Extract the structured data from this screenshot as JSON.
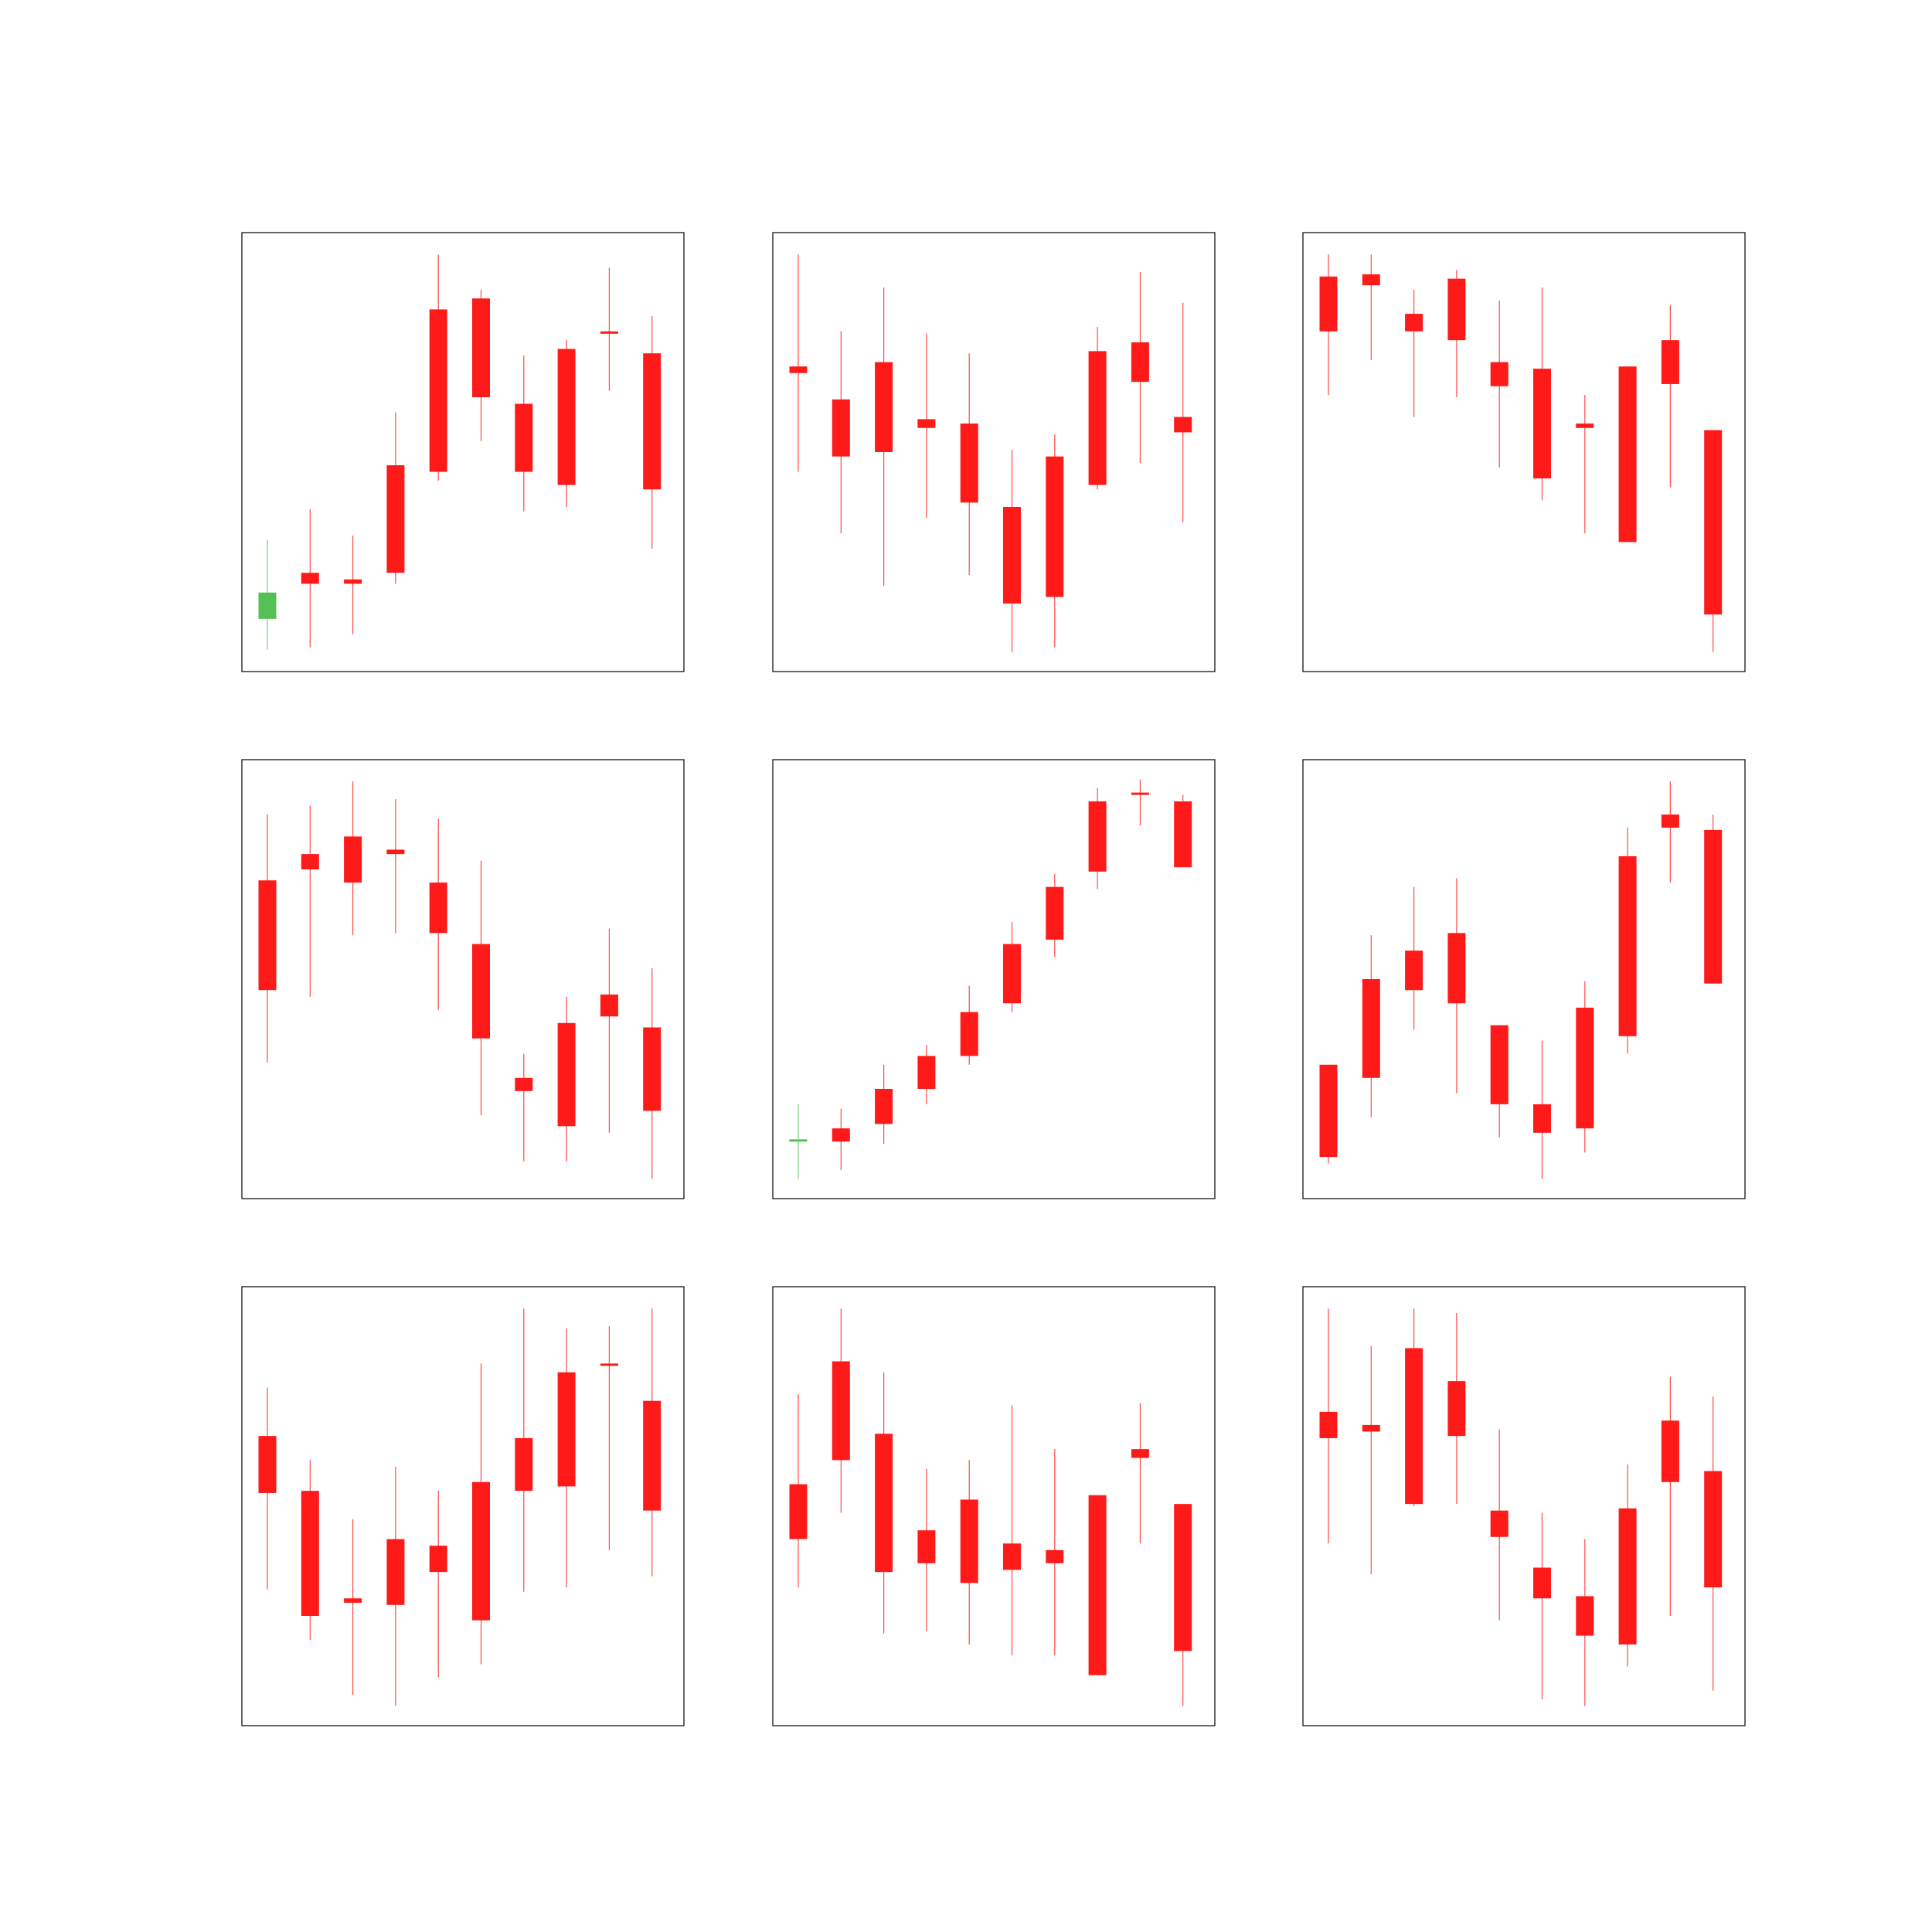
{
  "colors": {
    "up": "#ff1a1a",
    "down": "#55c155",
    "frame": "#000000"
  },
  "chart_data": [
    {
      "type": "candlestick",
      "grid": false,
      "ylim": [
        0,
        100
      ],
      "candles": [
        {
          "open": 18.0,
          "close": 12.0,
          "high": 30.0,
          "low": 5.0
        },
        {
          "open": 20.0,
          "close": 22.5,
          "high": 37.0,
          "low": 5.5
        },
        {
          "open": 20.0,
          "close": 21.0,
          "high": 31.0,
          "low": 8.5
        },
        {
          "open": 22.5,
          "close": 47.0,
          "high": 59.0,
          "low": 20.0
        },
        {
          "open": 45.5,
          "close": 82.5,
          "high": 95.0,
          "low": 43.5
        },
        {
          "open": 62.5,
          "close": 85.0,
          "high": 87.0,
          "low": 52.5
        },
        {
          "open": 45.5,
          "close": 61.0,
          "high": 72.0,
          "low": 36.5
        },
        {
          "open": 42.5,
          "close": 73.5,
          "high": 75.5,
          "low": 37.5
        },
        {
          "open": 77.0,
          "close": 77.5,
          "high": 92.0,
          "low": 64.0
        },
        {
          "open": 41.5,
          "close": 72.5,
          "high": 81.0,
          "low": 28.0
        }
      ]
    },
    {
      "type": "candlestick",
      "grid": false,
      "ylim": [
        0,
        100
      ],
      "candles": [
        {
          "open": 68.0,
          "close": 69.5,
          "high": 95.0,
          "low": 45.5
        },
        {
          "open": 49.0,
          "close": 62.0,
          "high": 77.5,
          "low": 31.5
        },
        {
          "open": 50.0,
          "close": 70.5,
          "high": 87.5,
          "low": 19.5
        },
        {
          "open": 55.5,
          "close": 57.5,
          "high": 77.0,
          "low": 35.0
        },
        {
          "open": 38.5,
          "close": 56.5,
          "high": 72.5,
          "low": 22.0
        },
        {
          "open": 15.5,
          "close": 37.5,
          "high": 50.5,
          "low": 4.5
        },
        {
          "open": 17.0,
          "close": 49.0,
          "high": 54.0,
          "low": 5.5
        },
        {
          "open": 42.5,
          "close": 73.0,
          "high": 78.5,
          "low": 41.5
        },
        {
          "open": 66.0,
          "close": 75.0,
          "high": 91.0,
          "low": 47.5
        },
        {
          "open": 54.5,
          "close": 58.0,
          "high": 84.0,
          "low": 34.0
        }
      ]
    },
    {
      "type": "candlestick",
      "grid": false,
      "ylim": [
        0,
        100
      ],
      "candles": [
        {
          "open": 77.5,
          "close": 90.0,
          "high": 95.0,
          "low": 63.0
        },
        {
          "open": 88.0,
          "close": 90.5,
          "high": 95.0,
          "low": 71.0
        },
        {
          "open": 77.5,
          "close": 81.5,
          "high": 87.0,
          "low": 58.0
        },
        {
          "open": 75.5,
          "close": 89.5,
          "high": 91.5,
          "low": 62.5
        },
        {
          "open": 65.0,
          "close": 70.5,
          "high": 84.5,
          "low": 46.5
        },
        {
          "open": 44.0,
          "close": 69.0,
          "high": 87.5,
          "low": 39.0
        },
        {
          "open": 55.5,
          "close": 56.5,
          "high": 63.0,
          "low": 31.5
        },
        {
          "open": 29.5,
          "close": 69.5,
          "high": 69.5,
          "low": 29.5
        },
        {
          "open": 65.5,
          "close": 75.5,
          "high": 83.5,
          "low": 42.0
        },
        {
          "open": 13.0,
          "close": 55.0,
          "high": 55.0,
          "low": 4.5
        }
      ]
    },
    {
      "type": "candlestick",
      "grid": false,
      "ylim": [
        0,
        100
      ],
      "candles": [
        {
          "open": 47.5,
          "close": 72.5,
          "high": 87.5,
          "low": 31.0
        },
        {
          "open": 75.0,
          "close": 78.5,
          "high": 89.5,
          "low": 46.0
        },
        {
          "open": 72.0,
          "close": 82.5,
          "high": 95.0,
          "low": 60.0
        },
        {
          "open": 78.5,
          "close": 79.5,
          "high": 91.0,
          "low": 60.5
        },
        {
          "open": 60.5,
          "close": 72.0,
          "high": 86.5,
          "low": 43.0
        },
        {
          "open": 36.5,
          "close": 58.0,
          "high": 77.0,
          "low": 19.0
        },
        {
          "open": 24.5,
          "close": 27.5,
          "high": 33.0,
          "low": 8.5
        },
        {
          "open": 16.5,
          "close": 40.0,
          "high": 46.0,
          "low": 8.5
        },
        {
          "open": 41.5,
          "close": 46.5,
          "high": 61.5,
          "low": 15.0
        },
        {
          "open": 20.0,
          "close": 39.0,
          "high": 52.5,
          "low": 4.5
        }
      ]
    },
    {
      "type": "candlestick",
      "grid": false,
      "ylim": [
        0,
        100
      ],
      "candles": [
        {
          "open": 13.5,
          "close": 13.0,
          "high": 21.5,
          "low": 4.5
        },
        {
          "open": 13.0,
          "close": 16.0,
          "high": 20.5,
          "low": 6.5
        },
        {
          "open": 17.0,
          "close": 25.0,
          "high": 30.5,
          "low": 12.5
        },
        {
          "open": 25.0,
          "close": 32.5,
          "high": 35.0,
          "low": 21.5
        },
        {
          "open": 32.5,
          "close": 42.5,
          "high": 48.5,
          "low": 30.5
        },
        {
          "open": 44.5,
          "close": 58.0,
          "high": 63.0,
          "low": 42.5
        },
        {
          "open": 59.0,
          "close": 71.0,
          "high": 74.0,
          "low": 55.0
        },
        {
          "open": 74.5,
          "close": 90.5,
          "high": 93.5,
          "low": 70.5
        },
        {
          "open": 92.0,
          "close": 92.5,
          "high": 95.5,
          "low": 85.0
        },
        {
          "open": 75.5,
          "close": 90.5,
          "high": 92.0,
          "low": 75.5
        }
      ]
    },
    {
      "type": "candlestick",
      "grid": false,
      "ylim": [
        0,
        100
      ],
      "candles": [
        {
          "open": 9.5,
          "close": 30.5,
          "high": 30.5,
          "low": 8.0
        },
        {
          "open": 27.5,
          "close": 50.0,
          "high": 60.0,
          "low": 18.5
        },
        {
          "open": 47.5,
          "close": 56.5,
          "high": 71.0,
          "low": 38.5
        },
        {
          "open": 44.5,
          "close": 60.5,
          "high": 73.0,
          "low": 24.0
        },
        {
          "open": 21.5,
          "close": 39.5,
          "high": 39.5,
          "low": 14.0
        },
        {
          "open": 15.0,
          "close": 21.5,
          "high": 36.0,
          "low": 4.5
        },
        {
          "open": 16.0,
          "close": 43.5,
          "high": 49.5,
          "low": 10.5
        },
        {
          "open": 37.0,
          "close": 78.0,
          "high": 84.5,
          "low": 33.0
        },
        {
          "open": 84.5,
          "close": 87.5,
          "high": 95.0,
          "low": 72.0
        },
        {
          "open": 49.0,
          "close": 84.0,
          "high": 87.5,
          "low": 49.0
        }
      ]
    },
    {
      "type": "candlestick",
      "grid": false,
      "ylim": [
        0,
        100
      ],
      "candles": [
        {
          "open": 53.0,
          "close": 66.0,
          "high": 77.0,
          "low": 31.0
        },
        {
          "open": 25.0,
          "close": 53.5,
          "high": 60.5,
          "low": 19.5
        },
        {
          "open": 28.0,
          "close": 29.0,
          "high": 47.0,
          "low": 7.0
        },
        {
          "open": 27.5,
          "close": 42.5,
          "high": 59.0,
          "low": 4.5
        },
        {
          "open": 35.0,
          "close": 41.0,
          "high": 53.5,
          "low": 11.0
        },
        {
          "open": 24.0,
          "close": 55.5,
          "high": 82.5,
          "low": 14.0
        },
        {
          "open": 53.5,
          "close": 65.5,
          "high": 95.0,
          "low": 30.5
        },
        {
          "open": 54.5,
          "close": 80.5,
          "high": 90.5,
          "low": 31.5
        },
        {
          "open": 82.5,
          "close": 82.5,
          "high": 91.0,
          "low": 40.0
        },
        {
          "open": 49.0,
          "close": 74.0,
          "high": 95.0,
          "low": 34.0
        }
      ]
    },
    {
      "type": "candlestick",
      "grid": false,
      "ylim": [
        0,
        100
      ],
      "candles": [
        {
          "open": 42.5,
          "close": 55.0,
          "high": 75.5,
          "low": 31.5
        },
        {
          "open": 60.5,
          "close": 83.0,
          "high": 95.0,
          "low": 48.5
        },
        {
          "open": 35.0,
          "close": 66.5,
          "high": 80.5,
          "low": 21.0
        },
        {
          "open": 37.0,
          "close": 44.5,
          "high": 58.5,
          "low": 21.5
        },
        {
          "open": 32.5,
          "close": 51.5,
          "high": 60.5,
          "low": 18.5
        },
        {
          "open": 35.5,
          "close": 41.5,
          "high": 73.0,
          "low": 16.0
        },
        {
          "open": 37.0,
          "close": 40.0,
          "high": 63.0,
          "low": 16.0
        },
        {
          "open": 11.5,
          "close": 52.5,
          "high": 52.5,
          "low": 11.5
        },
        {
          "open": 61.0,
          "close": 63.0,
          "high": 73.5,
          "low": 41.5
        },
        {
          "open": 17.0,
          "close": 50.5,
          "high": 50.5,
          "low": 4.5
        }
      ]
    },
    {
      "type": "candlestick",
      "grid": false,
      "ylim": [
        0,
        100
      ],
      "candles": [
        {
          "open": 65.5,
          "close": 71.5,
          "high": 95.0,
          "low": 41.5
        },
        {
          "open": 67.0,
          "close": 68.5,
          "high": 86.5,
          "low": 34.5
        },
        {
          "open": 50.5,
          "close": 86.0,
          "high": 95.0,
          "low": 50.0
        },
        {
          "open": 66.0,
          "close": 78.5,
          "high": 94.0,
          "low": 50.5
        },
        {
          "open": 43.0,
          "close": 49.0,
          "high": 67.5,
          "low": 24.0
        },
        {
          "open": 29.0,
          "close": 36.0,
          "high": 48.5,
          "low": 6.0
        },
        {
          "open": 20.5,
          "close": 29.5,
          "high": 42.5,
          "low": 4.5
        },
        {
          "open": 18.5,
          "close": 49.5,
          "high": 59.5,
          "low": 13.5
        },
        {
          "open": 55.5,
          "close": 69.5,
          "high": 79.5,
          "low": 25.0
        },
        {
          "open": 31.5,
          "close": 58.0,
          "high": 75.0,
          "low": 8.0
        }
      ]
    }
  ]
}
